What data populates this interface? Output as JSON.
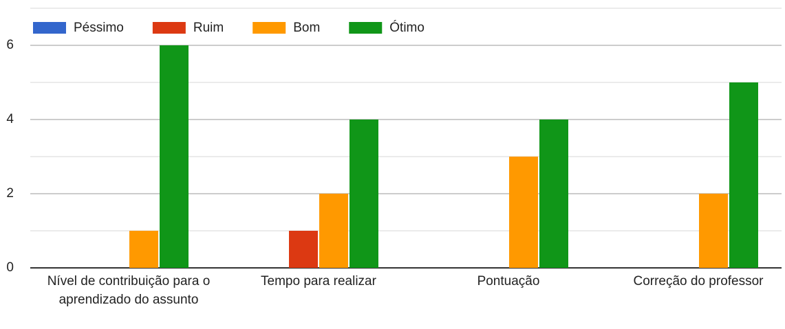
{
  "chart_data": {
    "type": "bar",
    "categories": [
      "Nível de contribuição para o aprendizado do assunto",
      "Tempo para realizar",
      "Pontuação",
      "Correção do professor"
    ],
    "series": [
      {
        "name": "Péssimo",
        "color": "#3366cc",
        "values": [
          0,
          0,
          0,
          0
        ]
      },
      {
        "name": "Ruim",
        "color": "#dc3912",
        "values": [
          0,
          1,
          0,
          0
        ]
      },
      {
        "name": "Bom",
        "color": "#ff9900",
        "values": [
          1,
          2,
          3,
          2
        ]
      },
      {
        "name": "Ótimo",
        "color": "#109618",
        "values": [
          6,
          4,
          4,
          5
        ]
      }
    ],
    "ylim": [
      0,
      7
    ],
    "yticks": [
      0,
      2,
      4,
      6
    ],
    "minor_yticks": [
      1,
      3,
      5,
      7
    ],
    "grid": true,
    "legend": "top"
  }
}
